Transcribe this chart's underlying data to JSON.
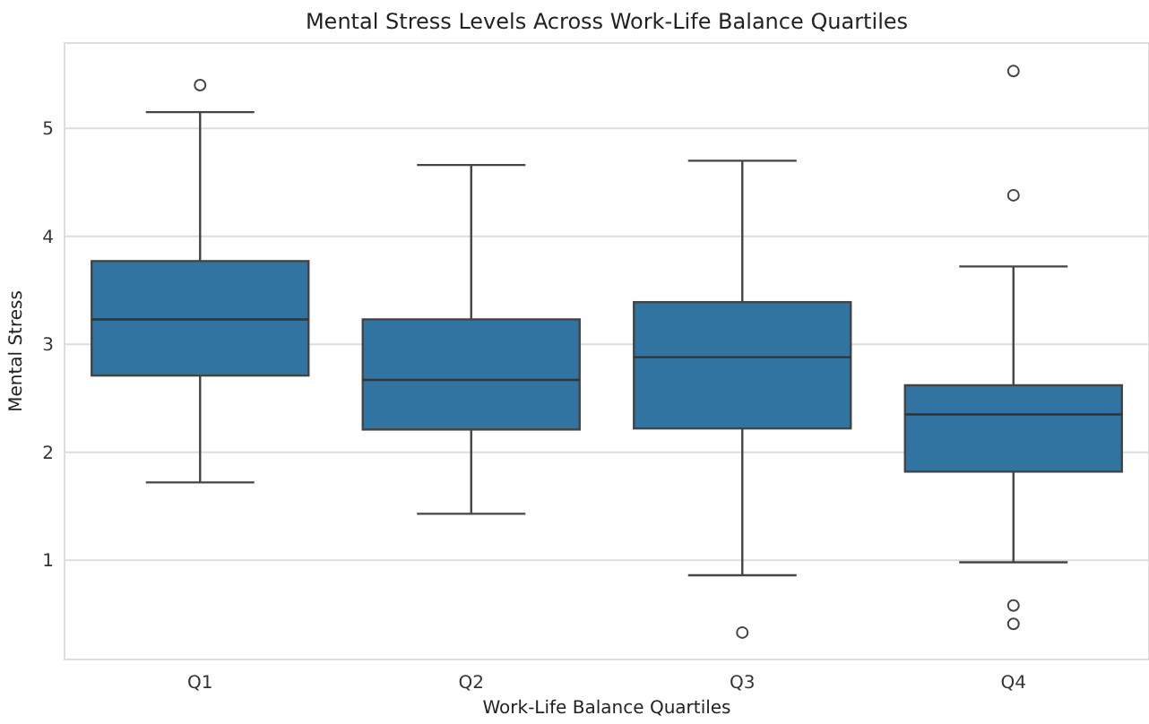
{
  "chart_data": {
    "type": "box",
    "title": "Mental Stress Levels Across Work-Life Balance Quartiles",
    "xlabel": "Work-Life Balance Quartiles",
    "ylabel": "Mental Stress",
    "categories": [
      "Q1",
      "Q2",
      "Q3",
      "Q4"
    ],
    "color": "#3274a1",
    "boxes": [
      {
        "low": 1.72,
        "q1": 2.71,
        "median": 3.23,
        "q3": 3.77,
        "high": 5.15,
        "outliers": [
          5.4
        ]
      },
      {
        "low": 1.43,
        "q1": 2.21,
        "median": 2.67,
        "q3": 3.23,
        "high": 4.66
      },
      {
        "low": 0.86,
        "q1": 2.22,
        "median": 2.88,
        "q3": 3.39,
        "high": 4.7,
        "outliers": [
          0.33
        ]
      },
      {
        "low": 0.98,
        "q1": 1.82,
        "median": 2.35,
        "q3": 2.62,
        "high": 3.72,
        "outliers": [
          5.53,
          4.38,
          0.58,
          0.41
        ]
      }
    ],
    "ylim": [
      0.08,
      5.79
    ],
    "yticks": [
      1,
      2,
      3,
      4,
      5
    ],
    "grid": "y"
  }
}
